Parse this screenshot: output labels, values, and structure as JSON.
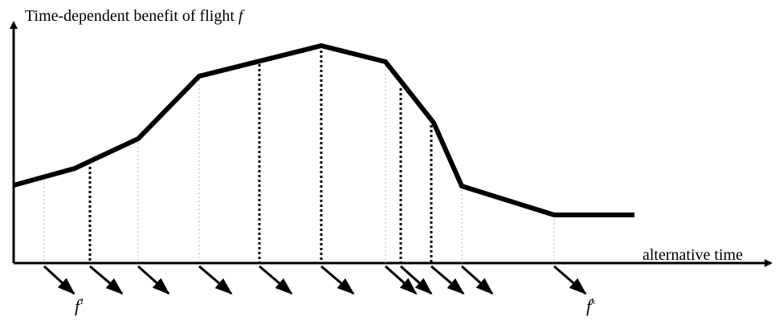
{
  "labels": {
    "y_axis_text": "Time-dependent benefit of flight ",
    "y_axis_var": "f",
    "x_axis": "alternative time",
    "first_flight_base": "f",
    "first_flight_sup": "1",
    "last_flight_base": "f",
    "last_flight_sup": "k"
  },
  "colors": {
    "line": "#000000",
    "dotted_faint": "#b0b0b0",
    "dotted_bold": "#000000"
  }
}
